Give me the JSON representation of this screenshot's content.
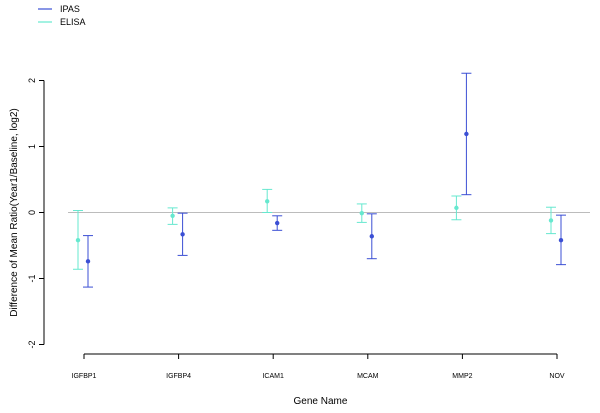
{
  "chart_data": {
    "type": "scatter",
    "subtype": "error-bar",
    "title": "",
    "xlabel": "Gene Name",
    "ylabel": "Difference of Mean Ratio(Year1/Baseline, log2)",
    "categories": [
      "IGFBP1",
      "IGFBP4",
      "ICAM1",
      "MCAM",
      "MMP2",
      "NOV"
    ],
    "ylim": [
      -2,
      2
    ],
    "yticks": [
      -2,
      -1,
      0,
      1,
      2
    ],
    "reference_line": 0,
    "grid": false,
    "legend": {
      "position": "top-left"
    },
    "series": [
      {
        "name": "IPAS",
        "color": "#3b4fd4",
        "values": [
          -0.74,
          -0.33,
          -0.16,
          -0.36,
          1.19,
          -0.42
        ],
        "lower": [
          -1.13,
          -0.65,
          -0.27,
          -0.7,
          0.27,
          -0.79
        ],
        "upper": [
          -0.35,
          -0.01,
          -0.05,
          -0.02,
          2.11,
          -0.04
        ]
      },
      {
        "name": "ELISA",
        "color": "#66e8cf",
        "values": [
          -0.42,
          -0.05,
          0.17,
          -0.01,
          0.07,
          -0.12
        ],
        "lower": [
          -0.86,
          -0.18,
          0.0,
          -0.15,
          -0.11,
          -0.32
        ],
        "upper": [
          0.03,
          0.07,
          0.35,
          0.13,
          0.25,
          0.08
        ]
      }
    ]
  }
}
